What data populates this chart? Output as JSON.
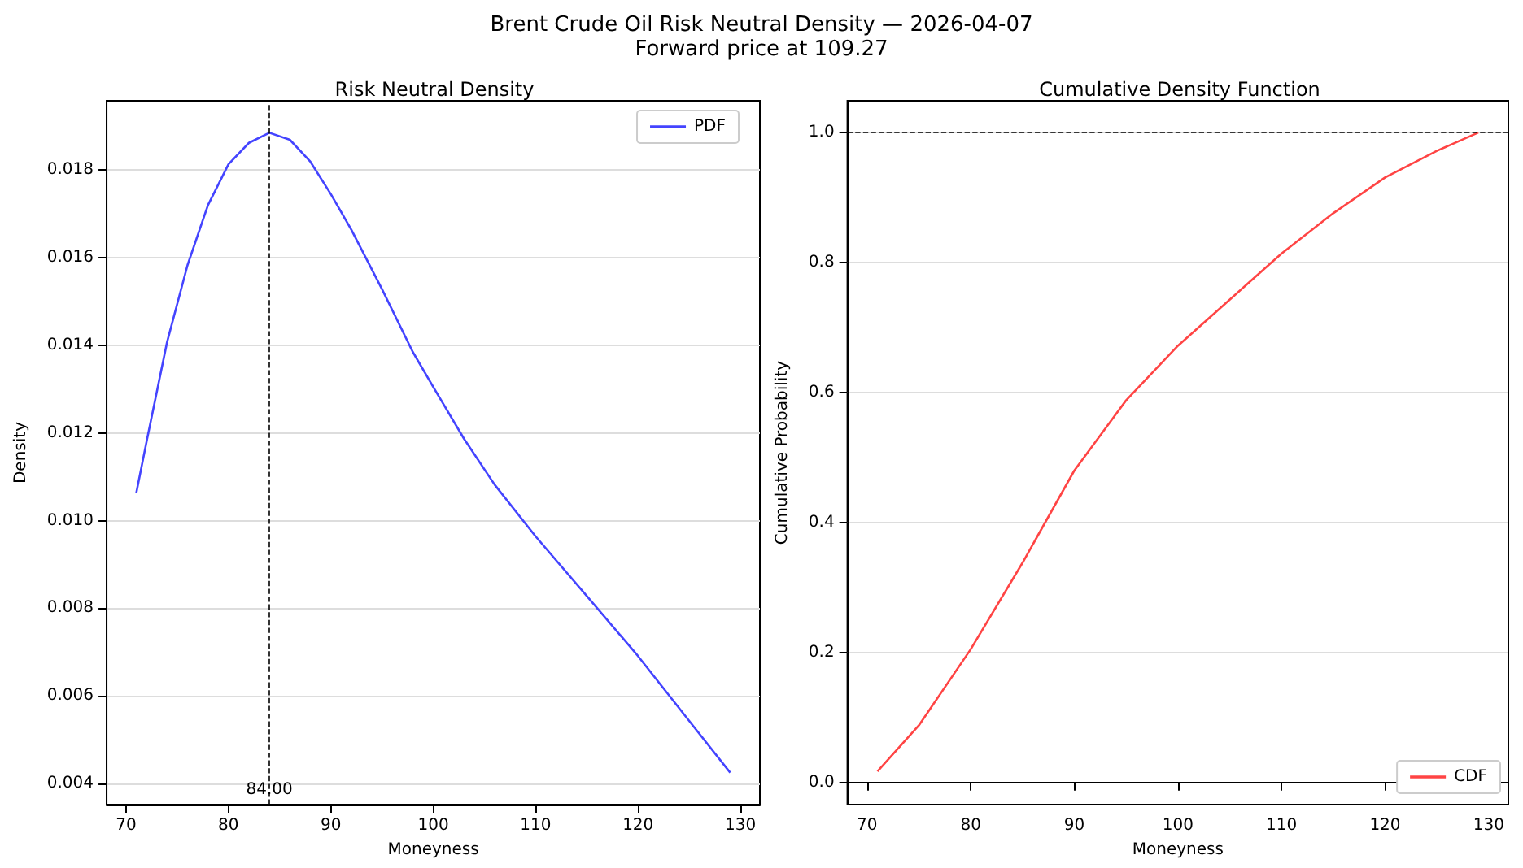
{
  "chart_data": [
    {
      "type": "line",
      "title": "Risk Neutral Density",
      "xlabel": "Moneyness",
      "ylabel": "Density",
      "annotations": [
        "Brent Crude Oil Risk Neutral Density — 2026-04-07",
        "Forward price at 109.27"
      ],
      "x": [
        71,
        72,
        74,
        76,
        78,
        80,
        82,
        84,
        86,
        88,
        90,
        92,
        95,
        98,
        100,
        103,
        106,
        110,
        115,
        120,
        125,
        129
      ],
      "series": [
        {
          "name": "PDF",
          "color": "#4444ff",
          "values": [
            0.01063,
            0.0118,
            0.01407,
            0.01583,
            0.0172,
            0.01813,
            0.01862,
            0.01885,
            0.01869,
            0.01819,
            0.01745,
            0.01664,
            0.01528,
            0.01385,
            0.01305,
            0.01187,
            0.01082,
            0.00964,
            0.00828,
            0.00691,
            0.00543,
            0.00425
          ]
        }
      ],
      "xlim": [
        68.1,
        131.9
      ],
      "xticks": [
        70,
        80,
        90,
        100,
        110,
        120,
        130
      ],
      "ylim": [
        0.00352,
        0.01958
      ],
      "yticks": [
        0.004,
        0.006,
        0.008,
        {
          "value": 0.01,
          "label": "0.010"
        },
        0.012,
        0.014,
        0.016,
        0.018
      ],
      "ref_lines": [
        {
          "axis": "x",
          "value": 84,
          "label": "84.00",
          "color": "#000000",
          "line_style": "dashed"
        }
      ],
      "grid": "y",
      "legend": "top right",
      "marker": "none",
      "line_style": "solid"
    },
    {
      "type": "line",
      "title": "Cumulative Density Function",
      "xlabel": "Moneyness",
      "ylabel": "Cumulative Probability",
      "x": [
        71,
        75,
        80,
        85,
        90,
        95,
        100,
        105,
        110,
        115,
        120,
        125,
        129
      ],
      "series": [
        {
          "name": "CDF",
          "color": "#ff4444",
          "values": [
            0.017,
            0.088,
            0.205,
            0.338,
            0.48,
            0.588,
            0.672,
            0.743,
            0.814,
            0.876,
            0.931,
            0.972,
            1.0
          ]
        }
      ],
      "xlim": [
        68.1,
        131.9
      ],
      "xticks": [
        70,
        80,
        90,
        100,
        110,
        120,
        130
      ],
      "ylim": [
        -0.034,
        1.049
      ],
      "yticks": [
        {
          "value": 0,
          "label": "0.0"
        },
        0.2,
        0.4,
        0.6,
        0.8,
        {
          "value": 1,
          "label": "1.0"
        }
      ],
      "ref_lines": [
        {
          "axis": "y",
          "value": 1,
          "label": null,
          "color": "#000000",
          "line_style": "dashed"
        }
      ],
      "grid": "y",
      "legend": "bottom right",
      "marker": "none",
      "line_style": "solid"
    }
  ]
}
